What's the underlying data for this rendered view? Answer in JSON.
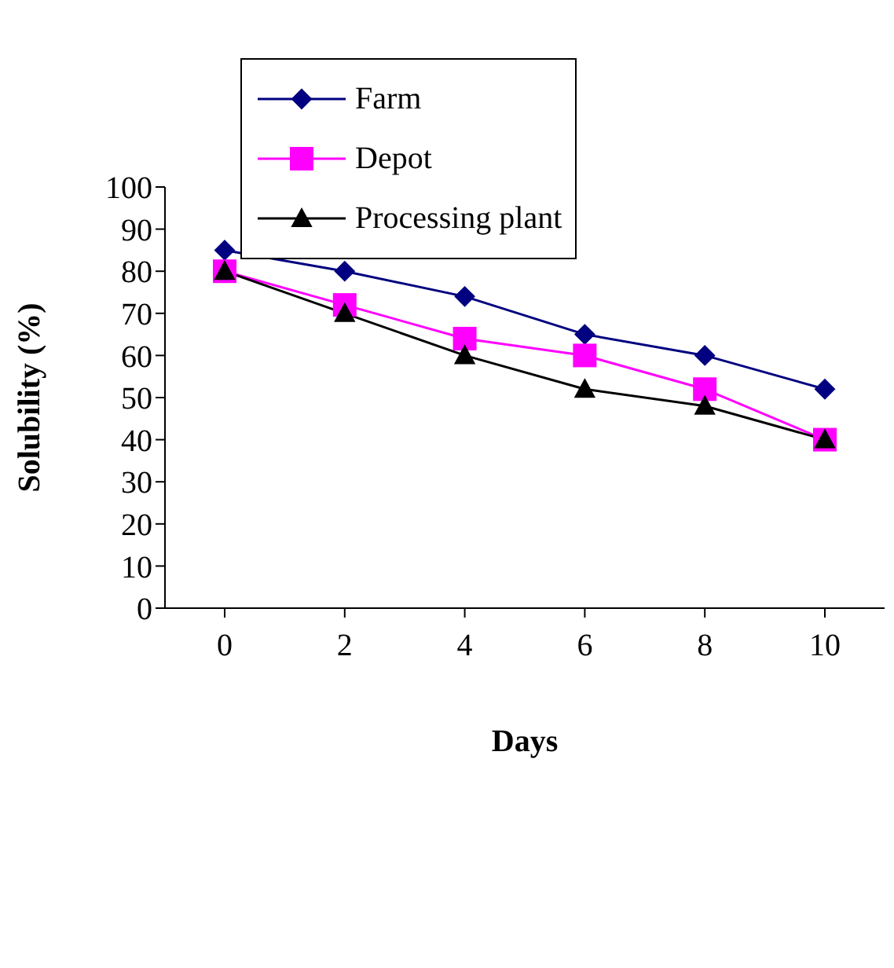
{
  "chart_data": {
    "type": "line",
    "xlabel": "Days",
    "ylabel": "Solubility (%)",
    "categories": [
      "0",
      "2",
      "4",
      "6",
      "8",
      "10"
    ],
    "ylim": [
      0,
      100
    ],
    "yticks": [
      0,
      10,
      20,
      30,
      40,
      50,
      60,
      70,
      80,
      90,
      100
    ],
    "grid": false,
    "legend": "top left",
    "series": [
      {
        "name": "Farm",
        "color": "#000080",
        "marker": "diamond",
        "values": [
          85,
          80,
          74,
          65,
          60,
          52
        ]
      },
      {
        "name": "Depot",
        "color": "#ff00ff",
        "marker": "square",
        "values": [
          80,
          72,
          64,
          60,
          52,
          40
        ]
      },
      {
        "name": "Processing plant",
        "color": "#000000",
        "marker": "triangle",
        "values": [
          80,
          70,
          60,
          52,
          48,
          40
        ]
      }
    ]
  }
}
